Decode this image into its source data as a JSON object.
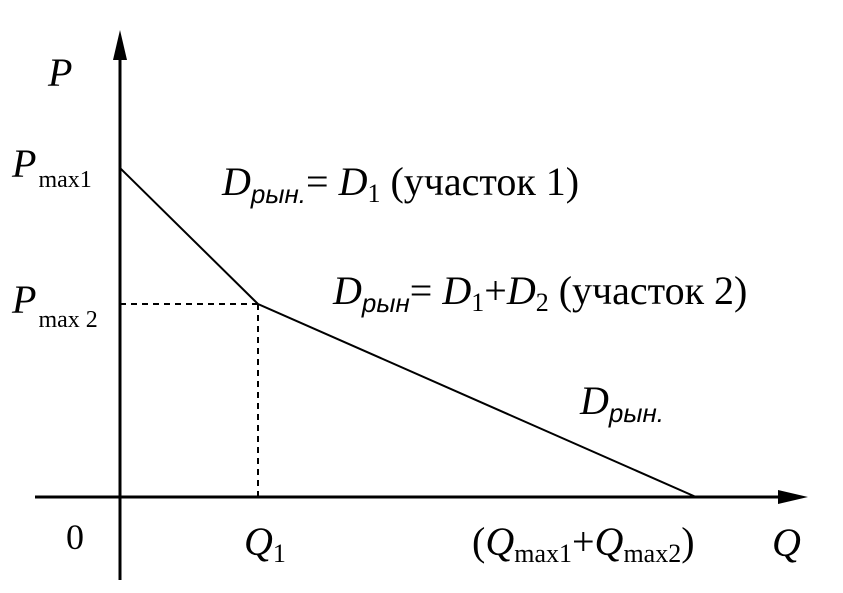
{
  "axes": {
    "y_label": "P",
    "x_label": "Q",
    "origin_label": "0"
  },
  "y_ticks": {
    "p1": {
      "main": "P",
      "sub": "max1"
    },
    "p2": {
      "main": "P",
      "sub": "max 2"
    }
  },
  "x_ticks": {
    "q1": {
      "main": "Q",
      "sub": "1"
    },
    "qmax": {
      "open": "(",
      "q_a": "Q",
      "sub_a": "max1",
      "plus": "+",
      "q_b": "Q",
      "sub_b": "max2",
      "close": ")"
    }
  },
  "labels": {
    "segment1": {
      "d": "D",
      "d_sub": "рын.",
      "eq": "= ",
      "d1": "D",
      "d1_sub": "1",
      "note": " (участок 1)"
    },
    "segment2": {
      "d": "D",
      "d_sub": "рын",
      "eq": "= ",
      "d1": "D",
      "d1_sub": "1",
      "plus": "+",
      "d2": "D",
      "d2_sub": "2",
      "note": " (участок 2)"
    },
    "curve": {
      "d": "D",
      "d_sub": "рын."
    }
  },
  "colors": {
    "line": "#000000",
    "background": "#ffffff"
  }
}
